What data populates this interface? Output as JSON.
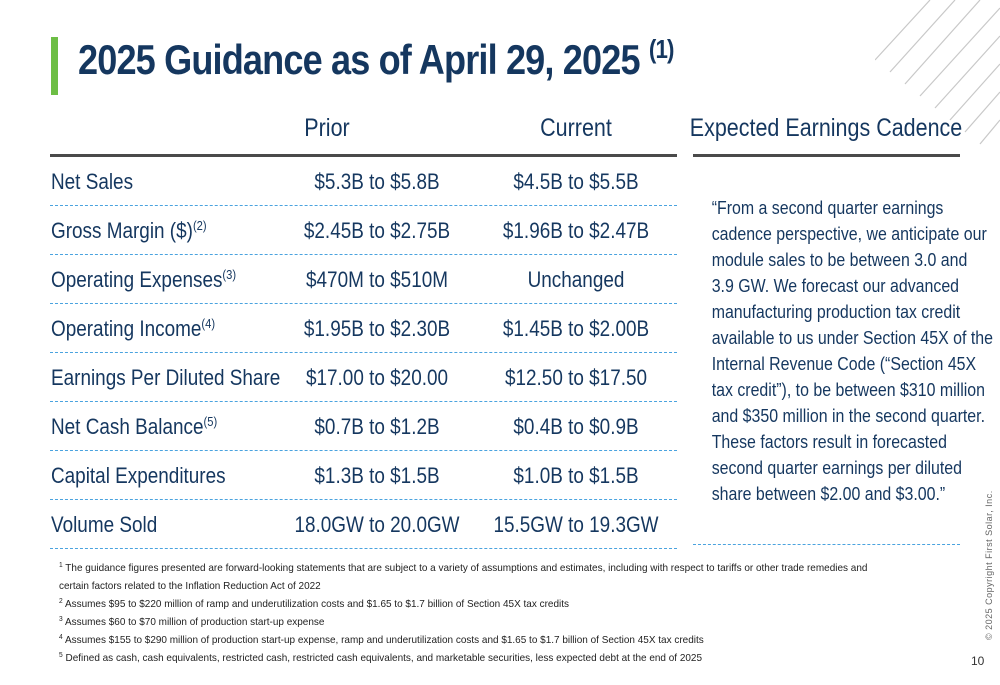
{
  "title": {
    "text": "2025 Guidance as of April 29, 2025",
    "footnote_ref": "(1)",
    "accent_color": "#6dbe45",
    "text_color": "#15375f"
  },
  "table": {
    "headers": {
      "prior": "Prior",
      "current": "Current"
    },
    "rows": [
      {
        "label": "Net Sales",
        "sup": "",
        "prior": "$5.3B to $5.8B",
        "current": "$4.5B to $5.5B"
      },
      {
        "label": "Gross Margin ($)",
        "sup": "(2)",
        "prior": "$2.45B to $2.75B",
        "current": "$1.96B to $2.47B"
      },
      {
        "label": "Operating Expenses",
        "sup": "(3)",
        "prior": "$470M to $510M",
        "current": "Unchanged"
      },
      {
        "label": "Operating Income",
        "sup": "(4)",
        "prior": "$1.95B to $2.30B",
        "current": "$1.45B to $2.00B"
      },
      {
        "label": "Earnings Per Diluted Share",
        "sup": "",
        "prior": "$17.00 to $20.00",
        "current": "$12.50 to $17.50"
      },
      {
        "label": "Net Cash Balance",
        "sup": "(5)",
        "prior": "$0.7B to $1.2B",
        "current": "$0.4B to $0.9B"
      },
      {
        "label": "Capital Expenditures",
        "sup": "",
        "prior": "$1.3B to $1.5B",
        "current": "$1.0B to $1.5B"
      },
      {
        "label": "Volume Sold",
        "sup": "",
        "prior": "18.0GW to 20.0GW",
        "current": "15.5GW to 19.3GW"
      }
    ]
  },
  "cadence": {
    "heading": "Expected Earnings Cadence",
    "quote_lines": [
      "“From a second quarter earnings",
      "cadence perspective, we anticipate our",
      "module sales to be between 3.0 and",
      "3.9 GW. We forecast our advanced",
      "manufacturing production tax credit",
      "available to us under Section 45X of the",
      "Internal Revenue Code (“Section 45X",
      "tax credit”), to be between $310 million",
      "and $350 million in the second quarter.",
      "These factors result in forecasted",
      "second quarter earnings per diluted",
      "share between $2.00 and $3.00.”"
    ]
  },
  "footnotes": [
    {
      "num": "1",
      "text": "The guidance figures presented are forward-looking statements that are subject to a variety of assumptions and estimates, including with respect to tariffs or other trade remedies and"
    },
    {
      "num": "",
      "text": "certain factors related to the Inflation Reduction Act of 2022"
    },
    {
      "num": "2",
      "text": "Assumes $95 to $220 million of ramp and underutilization costs and $1.65 to $1.7 billion of Section 45X tax credits"
    },
    {
      "num": "3",
      "text": "Assumes $60 to $70 million of production start-up expense"
    },
    {
      "num": "4",
      "text": "Assumes $155 to $290 million of production start-up expense, ramp and underutilization costs and $1.65 to $1.7 billion of Section 45X tax credits"
    },
    {
      "num": "5",
      "text": "Defined as cash, cash equivalents, restricted cash, restricted cash equivalents, and marketable securities, less expected debt at the end of 2025"
    }
  ],
  "copyright": "© 2025 Copyright First Solar, Inc.",
  "page_number": "10"
}
